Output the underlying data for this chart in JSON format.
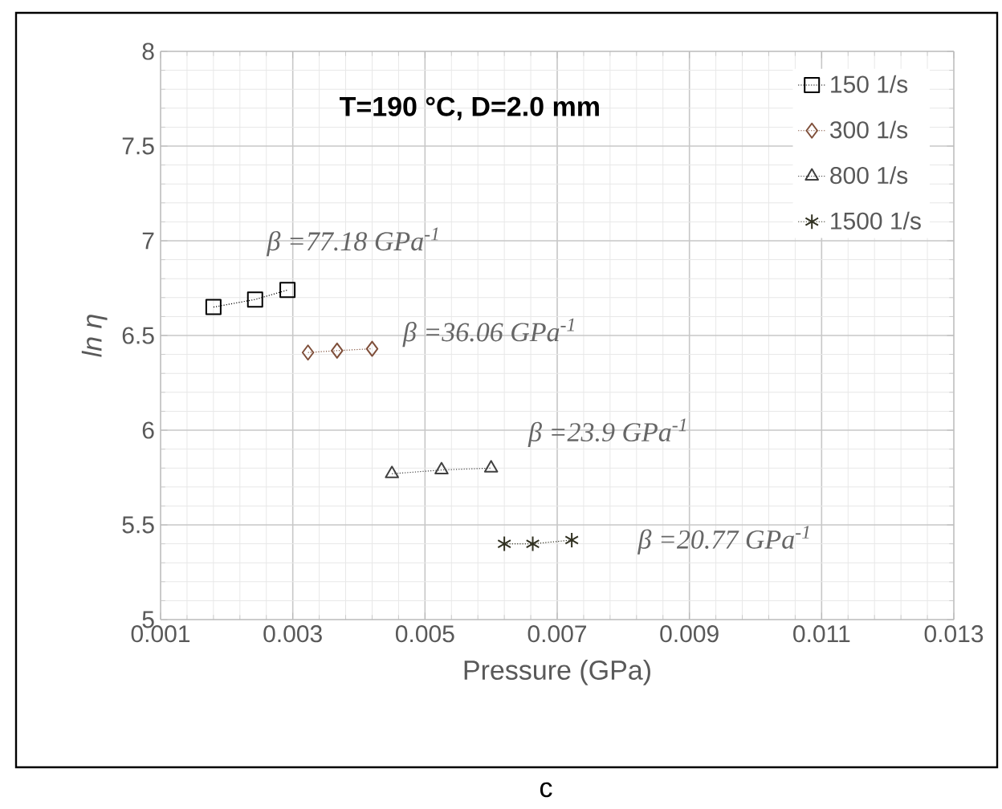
{
  "chart_data": {
    "type": "line",
    "title": "T=190 °C, D=2.0  mm",
    "xlabel": "Pressure (GPa)",
    "ylabel": "*ln η*",
    "series": [
      {
        "name": "150 1/s",
        "color": "#000000",
        "marker": "square",
        "line_style": "dotted",
        "x": [
          0.0018,
          0.00243,
          0.00292
        ],
        "values": [
          6.65,
          6.69,
          6.74
        ]
      },
      {
        "name": "300 1/s",
        "color": "#7f4f3a",
        "marker": "diamond",
        "line_style": "dotted",
        "x": [
          0.00323,
          0.00367,
          0.0042
        ],
        "values": [
          6.41,
          6.42,
          6.43
        ]
      },
      {
        "name": "800 1/s",
        "color": "#404040",
        "marker": "triangle",
        "line_style": "dotted",
        "x": [
          0.0045,
          0.00525,
          0.006
        ],
        "values": [
          5.77,
          5.79,
          5.8
        ]
      },
      {
        "name": "1500 1/s",
        "color": "#303020",
        "marker": "cross",
        "line_style": "dotted",
        "x": [
          0.0062,
          0.00663,
          0.00722
        ],
        "values": [
          5.4,
          5.4,
          5.42
        ]
      }
    ],
    "annotations": [
      "β =77.18 GPa$^{-1}$",
      "β =36.06 GPa$^{-1}$",
      "β =23.9 GPa$^{-1}$",
      "β =20.77 GPa$^{-1}$",
      "c"
    ],
    "xlim": [
      0.001,
      0.013
    ],
    "xticks": [
      0.001,
      0.003,
      0.005,
      0.007,
      0.009,
      0.011,
      0.013
    ],
    "ylim": [
      5,
      8
    ],
    "yticks": [
      5,
      5.5,
      6,
      6.5,
      7,
      7.5,
      8
    ],
    "grid": true,
    "legend": "top right"
  }
}
